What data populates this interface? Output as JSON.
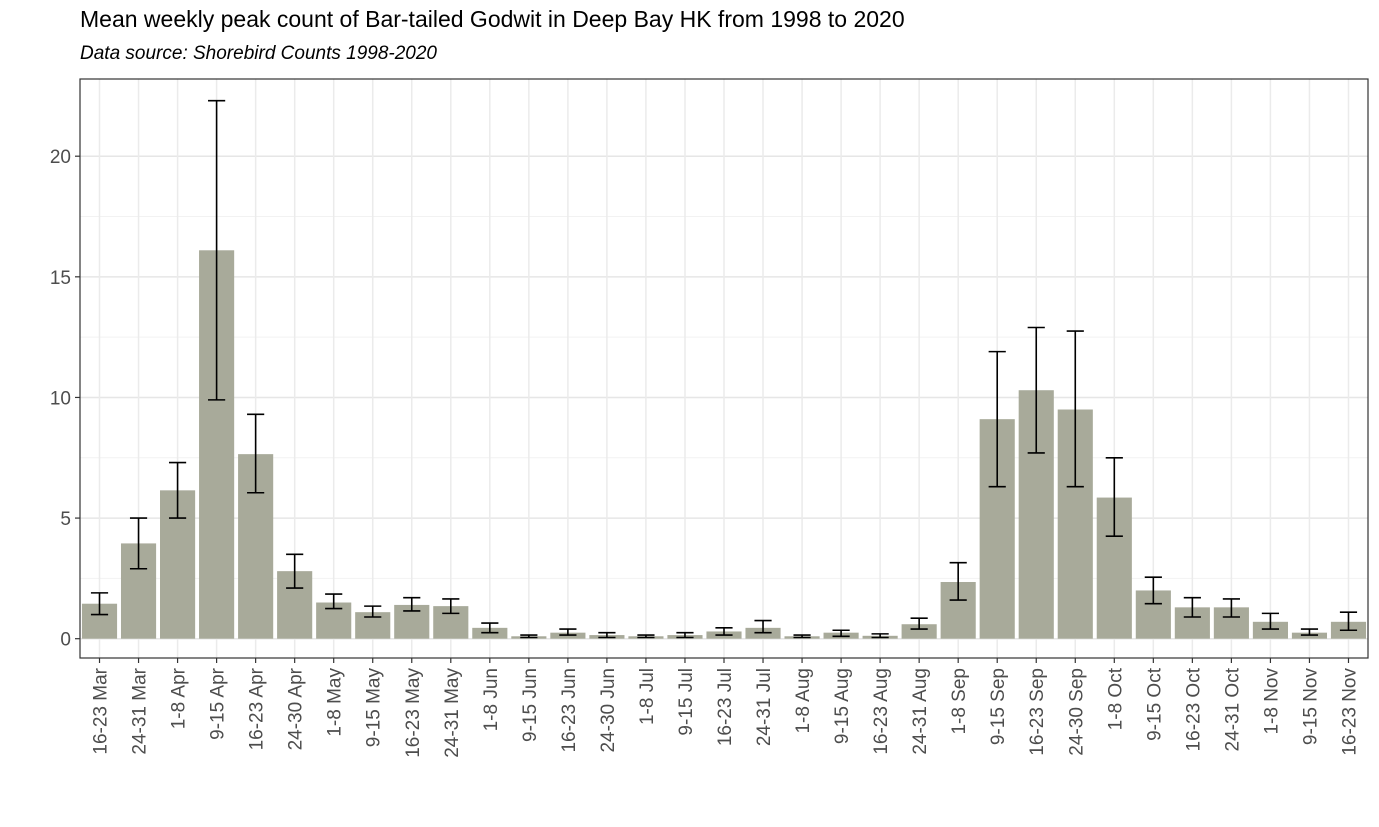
{
  "chart_data": {
    "type": "bar",
    "title": "Mean weekly peak count of Bar-tailed Godwit in Deep Bay HK from 1998 to 2020",
    "subtitle": "Data source: Shorebird Counts 1998-2020",
    "xlabel": "",
    "ylabel": "",
    "ylim": [
      -0.8,
      23.2
    ],
    "yticks": [
      0,
      5,
      10,
      15,
      20
    ],
    "grid": true,
    "bar_color": "#a8aa9a",
    "categories": [
      "16-23 Mar",
      "24-31 Mar",
      "1-8 Apr",
      "9-15 Apr",
      "16-23 Apr",
      "24-30 Apr",
      "1-8 May",
      "9-15 May",
      "16-23 May",
      "24-31 May",
      "1-8 Jun",
      "9-15 Jun",
      "16-23 Jun",
      "24-30 Jun",
      "1-8 Jul",
      "9-15 Jul",
      "16-23 Jul",
      "24-31 Jul",
      "1-8 Aug",
      "9-15 Aug",
      "16-23 Aug",
      "24-31 Aug",
      "1-8 Sep",
      "9-15 Sep",
      "16-23 Sep",
      "24-30 Sep",
      "1-8 Oct",
      "9-15 Oct",
      "16-23 Oct",
      "24-31 Oct",
      "1-8 Nov",
      "9-15 Nov",
      "16-23 Nov"
    ],
    "values": [
      1.45,
      3.95,
      6.15,
      16.1,
      7.65,
      2.8,
      1.5,
      1.1,
      1.4,
      1.35,
      0.45,
      0.1,
      0.25,
      0.15,
      0.1,
      0.15,
      0.3,
      0.45,
      0.1,
      0.25,
      0.12,
      0.6,
      2.35,
      9.1,
      10.3,
      9.5,
      5.85,
      2.0,
      1.3,
      1.3,
      0.7,
      0.25,
      0.7
    ],
    "error_lower": [
      1.0,
      2.9,
      5.0,
      9.9,
      6.05,
      2.1,
      1.25,
      0.9,
      1.15,
      1.05,
      0.25,
      0.05,
      0.15,
      0.05,
      0.05,
      0.05,
      0.15,
      0.25,
      0.05,
      0.1,
      0.05,
      0.4,
      1.6,
      6.3,
      7.7,
      6.3,
      4.25,
      1.45,
      0.9,
      0.9,
      0.4,
      0.15,
      0.35
    ],
    "error_upper": [
      1.9,
      5.0,
      7.3,
      22.3,
      9.3,
      3.5,
      1.85,
      1.35,
      1.7,
      1.65,
      0.65,
      0.15,
      0.4,
      0.25,
      0.15,
      0.25,
      0.45,
      0.75,
      0.15,
      0.35,
      0.2,
      0.85,
      3.15,
      11.9,
      12.9,
      12.75,
      7.5,
      2.55,
      1.7,
      1.65,
      1.05,
      0.4,
      1.1
    ]
  }
}
